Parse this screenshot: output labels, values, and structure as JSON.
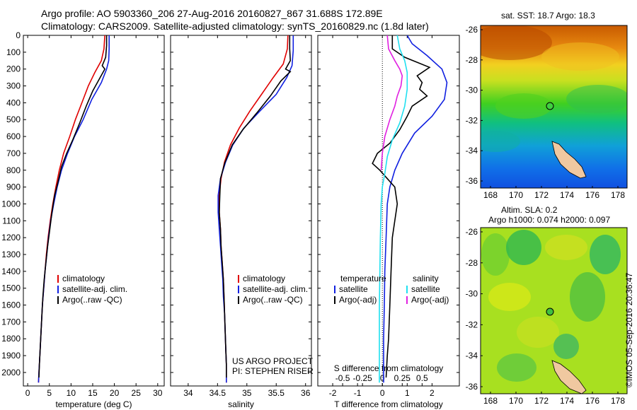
{
  "title": {
    "line1": "Argo profile: AO 5903360_206 27-Aug-2016 20160827_867 31.688S 172.89E",
    "line2": "Climatology: CARS2009. Satellite-adjusted climatology: synTS_20160829.nc (1.8d later)"
  },
  "colors": {
    "climatology": "#e00000",
    "satellite": "#1020e0",
    "argo": "#000000",
    "sal_satellite": "#20e0f0",
    "sal_argo": "#e020e0"
  },
  "chart_data": [
    {
      "type": "line",
      "name": "temperature-panel",
      "xlabel": "temperature (deg C)",
      "ylabel": "",
      "xlim": [
        -1,
        31.5
      ],
      "ylim": [
        2080,
        0
      ],
      "xticks": [
        0,
        5,
        10,
        15,
        20,
        25,
        30
      ],
      "yticks": [
        0,
        100,
        200,
        300,
        400,
        500,
        600,
        700,
        800,
        900,
        1000,
        1100,
        1200,
        1300,
        1400,
        1500,
        1600,
        1700,
        1800,
        1900,
        2000
      ],
      "legend": [
        "climatology",
        "satellite-adj. clim.",
        "Argo(..raw -QC)"
      ],
      "legend_position": "lower-middle",
      "series": [
        {
          "name": "climatology",
          "color": "#e00000",
          "points": [
            [
              17.8,
              0
            ],
            [
              17.6,
              80
            ],
            [
              17.0,
              150
            ],
            [
              15.5,
              220
            ],
            [
              14.0,
              300
            ],
            [
              12.5,
              400
            ],
            [
              11.0,
              500
            ],
            [
              9.7,
              600
            ],
            [
              8.3,
              700
            ],
            [
              7.3,
              800
            ],
            [
              6.5,
              900
            ],
            [
              5.8,
              1000
            ],
            [
              5.2,
              1100
            ],
            [
              4.7,
              1200
            ],
            [
              4.3,
              1300
            ],
            [
              4.0,
              1400
            ],
            [
              3.7,
              1500
            ],
            [
              3.4,
              1600
            ],
            [
              3.2,
              1700
            ],
            [
              3.0,
              1800
            ],
            [
              2.8,
              1900
            ],
            [
              2.6,
              2000
            ],
            [
              2.5,
              2060
            ]
          ]
        },
        {
          "name": "satellite-adj. clim.",
          "color": "#1020e0",
          "points": [
            [
              18.8,
              0
            ],
            [
              18.8,
              80
            ],
            [
              18.7,
              150
            ],
            [
              18.2,
              200
            ],
            [
              17.0,
              280
            ],
            [
              14.8,
              380
            ],
            [
              12.8,
              500
            ],
            [
              10.8,
              600
            ],
            [
              9.2,
              700
            ],
            [
              7.8,
              800
            ],
            [
              6.8,
              900
            ],
            [
              6.0,
              1000
            ],
            [
              5.3,
              1100
            ],
            [
              4.8,
              1200
            ],
            [
              4.4,
              1300
            ],
            [
              4.0,
              1400
            ],
            [
              3.7,
              1500
            ],
            [
              3.4,
              1600
            ],
            [
              3.2,
              1700
            ],
            [
              3.0,
              1800
            ],
            [
              2.8,
              1900
            ],
            [
              2.6,
              2000
            ],
            [
              2.5,
              2060
            ]
          ]
        },
        {
          "name": "Argo(..raw -QC)",
          "color": "#000000",
          "points": [
            [
              18.2,
              0
            ],
            [
              18.2,
              60
            ],
            [
              18.0,
              130
            ],
            [
              17.2,
              180
            ],
            [
              17.8,
              200
            ],
            [
              16.5,
              260
            ],
            [
              15.0,
              330
            ],
            [
              13.5,
              420
            ],
            [
              12.0,
              520
            ],
            [
              10.4,
              620
            ],
            [
              9.0,
              700
            ],
            [
              7.8,
              780
            ],
            [
              6.9,
              880
            ],
            [
              6.2,
              950
            ],
            [
              5.6,
              1050
            ],
            [
              5.1,
              1150
            ],
            [
              4.6,
              1250
            ],
            [
              4.2,
              1350
            ],
            [
              3.8,
              1450
            ],
            [
              3.5,
              1550
            ],
            [
              3.3,
              1650
            ],
            [
              3.1,
              1750
            ],
            [
              2.9,
              1850
            ],
            [
              2.7,
              1950
            ],
            [
              2.6,
              2030
            ]
          ]
        }
      ]
    },
    {
      "type": "line",
      "name": "salinity-panel",
      "xlabel": "salinity",
      "ylabel": "",
      "xlim": [
        33.7,
        36.1
      ],
      "ylim": [
        2080,
        0
      ],
      "xticks": [
        34,
        34.5,
        35,
        35.5,
        36
      ],
      "legend": [
        "climatology",
        "satellite-adj. clim.",
        "Argo(..raw -QC)"
      ],
      "legend_position": "lower-right",
      "annotation": [
        "US ARGO PROJECT",
        "PI: STEPHEN RISER"
      ],
      "series": [
        {
          "name": "climatology",
          "color": "#e00000",
          "points": [
            [
              35.7,
              0
            ],
            [
              35.69,
              80
            ],
            [
              35.62,
              170
            ],
            [
              35.45,
              250
            ],
            [
              35.25,
              350
            ],
            [
              35.05,
              450
            ],
            [
              34.87,
              550
            ],
            [
              34.72,
              650
            ],
            [
              34.62,
              750
            ],
            [
              34.56,
              850
            ],
            [
              34.53,
              950
            ],
            [
              34.53,
              1050
            ],
            [
              34.55,
              1150
            ],
            [
              34.56,
              1250
            ],
            [
              34.58,
              1350
            ],
            [
              34.6,
              1450
            ],
            [
              34.61,
              1550
            ],
            [
              34.62,
              1650
            ],
            [
              34.63,
              1750
            ],
            [
              34.64,
              1850
            ],
            [
              34.65,
              1950
            ],
            [
              34.65,
              2060
            ]
          ]
        },
        {
          "name": "satellite-adj. clim.",
          "color": "#1020e0",
          "points": [
            [
              35.79,
              0
            ],
            [
              35.79,
              90
            ],
            [
              35.77,
              180
            ],
            [
              35.68,
              250
            ],
            [
              35.5,
              350
            ],
            [
              35.22,
              450
            ],
            [
              34.95,
              550
            ],
            [
              34.76,
              650
            ],
            [
              34.64,
              750
            ],
            [
              34.55,
              850
            ],
            [
              34.51,
              950
            ],
            [
              34.51,
              1050
            ],
            [
              34.53,
              1150
            ],
            [
              34.55,
              1250
            ],
            [
              34.57,
              1350
            ],
            [
              34.59,
              1450
            ],
            [
              34.6,
              1550
            ],
            [
              34.62,
              1650
            ],
            [
              34.63,
              1750
            ],
            [
              34.64,
              1850
            ],
            [
              34.65,
              1950
            ],
            [
              34.65,
              2060
            ]
          ]
        },
        {
          "name": "Argo(..raw -QC)",
          "color": "#000000",
          "points": [
            [
              35.73,
              0
            ],
            [
              35.73,
              80
            ],
            [
              35.74,
              150
            ],
            [
              35.66,
              200
            ],
            [
              35.74,
              215
            ],
            [
              35.58,
              270
            ],
            [
              35.4,
              360
            ],
            [
              35.17,
              460
            ],
            [
              34.93,
              560
            ],
            [
              34.75,
              650
            ],
            [
              34.62,
              760
            ],
            [
              34.55,
              850
            ],
            [
              34.54,
              950
            ],
            [
              34.53,
              1050
            ],
            [
              34.55,
              1150
            ],
            [
              34.56,
              1250
            ],
            [
              34.58,
              1350
            ],
            [
              34.6,
              1450
            ],
            [
              34.61,
              1550
            ],
            [
              34.62,
              1650
            ],
            [
              34.63,
              1750
            ],
            [
              34.64,
              1850
            ],
            [
              34.65,
              1950
            ],
            [
              34.65,
              2030
            ]
          ]
        }
      ]
    },
    {
      "type": "line",
      "name": "difference-panel",
      "xlabel": "T difference from climatology",
      "xlabel2": "S difference from climatology",
      "xlim": [
        -2.6,
        3.1
      ],
      "ylim": [
        2080,
        0
      ],
      "xticks": [
        -2,
        -1,
        0,
        1,
        2
      ],
      "xticks_s_labels": [
        {
          "at": -1.6,
          "label": "-0.5"
        },
        {
          "at": -0.8,
          "label": "-0.25"
        },
        {
          "at": 0.0,
          "label": "0"
        },
        {
          "at": 0.8,
          "label": "0.25"
        },
        {
          "at": 1.6,
          "label": "0.5"
        }
      ],
      "legend_titles": [
        "temperature",
        "salinity"
      ],
      "legend": [
        "satellite",
        "Argo(-adj)",
        "satellite",
        "Argo(-adj)"
      ],
      "legend_position": "lower-middle",
      "series": [
        {
          "name": "temperature satellite",
          "color": "#1020e0",
          "points": [
            [
              1.0,
              0
            ],
            [
              1.2,
              50
            ],
            [
              1.8,
              120
            ],
            [
              2.4,
              200
            ],
            [
              2.6,
              280
            ],
            [
              2.5,
              380
            ],
            [
              2.0,
              480
            ],
            [
              1.3,
              580
            ],
            [
              0.8,
              700
            ],
            [
              0.5,
              800
            ],
            [
              0.3,
              900
            ],
            [
              0.2,
              1000
            ],
            [
              0.15,
              1200
            ],
            [
              0.1,
              1400
            ],
            [
              0.08,
              1600
            ],
            [
              0.05,
              1800
            ],
            [
              0.05,
              2060
            ]
          ]
        },
        {
          "name": "temperature Argo(-adj)",
          "color": "#000000",
          "points": [
            [
              0.4,
              0
            ],
            [
              0.4,
              80
            ],
            [
              0.9,
              130
            ],
            [
              1.9,
              190
            ],
            [
              1.4,
              240
            ],
            [
              1.6,
              280
            ],
            [
              1.5,
              320
            ],
            [
              1.8,
              360
            ],
            [
              1.2,
              420
            ],
            [
              1.0,
              480
            ],
            [
              0.7,
              560
            ],
            [
              0.3,
              640
            ],
            [
              -0.2,
              700
            ],
            [
              -0.4,
              760
            ],
            [
              -0.1,
              800
            ],
            [
              0.2,
              850
            ],
            [
              0.5,
              900
            ],
            [
              0.6,
              1000
            ],
            [
              0.5,
              1100
            ],
            [
              0.4,
              1200
            ],
            [
              0.35,
              1400
            ],
            [
              0.3,
              1600
            ],
            [
              0.25,
              1800
            ],
            [
              0.2,
              1900
            ],
            [
              0.15,
              2030
            ]
          ]
        },
        {
          "name": "salinity satellite",
          "color": "#20e0f0",
          "points": [
            [
              0.6,
              0
            ],
            [
              0.7,
              80
            ],
            [
              0.9,
              150
            ],
            [
              1.0,
              220
            ],
            [
              1.0,
              320
            ],
            [
              0.9,
              420
            ],
            [
              0.7,
              520
            ],
            [
              0.4,
              620
            ],
            [
              0.2,
              720
            ],
            [
              0.1,
              820
            ],
            [
              0.0,
              900
            ],
            [
              -0.05,
              1000
            ],
            [
              -0.08,
              1200
            ],
            [
              -0.1,
              1400
            ],
            [
              -0.12,
              1600
            ],
            [
              -0.12,
              1800
            ],
            [
              -0.12,
              2060
            ]
          ]
        },
        {
          "name": "salinity Argo(-adj)",
          "color": "#e020e0",
          "points": [
            [
              0.2,
              0
            ],
            [
              0.25,
              80
            ],
            [
              0.5,
              150
            ],
            [
              0.7,
              200
            ],
            [
              0.8,
              240
            ],
            [
              0.75,
              300
            ],
            [
              0.6,
              360
            ],
            [
              0.5,
              420
            ],
            [
              0.3,
              500
            ],
            [
              0.1,
              600
            ],
            [
              0.0,
              700
            ],
            [
              -0.05,
              800
            ]
          ]
        }
      ]
    }
  ],
  "maps": {
    "sst": {
      "title": "sat. SST: 18.7  Argo: 18.3",
      "xticks": [
        "168",
        "170",
        "172",
        "174",
        "176",
        "178"
      ],
      "yticks": [
        "-26",
        "-28",
        "-30",
        "-32",
        "-34",
        "-36"
      ]
    },
    "sla": {
      "title1": "Altim. SLA: 0.2",
      "title2": "Argo h1000: 0.074  h2000: 0.097",
      "xticks": [
        "168",
        "170",
        "172",
        "174",
        "176",
        "178"
      ],
      "yticks": [
        "-26",
        "-28",
        "-30",
        "-32",
        "-34",
        "-36"
      ]
    }
  },
  "credit": "©IMOS 05-Sep-2016 20:36:47"
}
